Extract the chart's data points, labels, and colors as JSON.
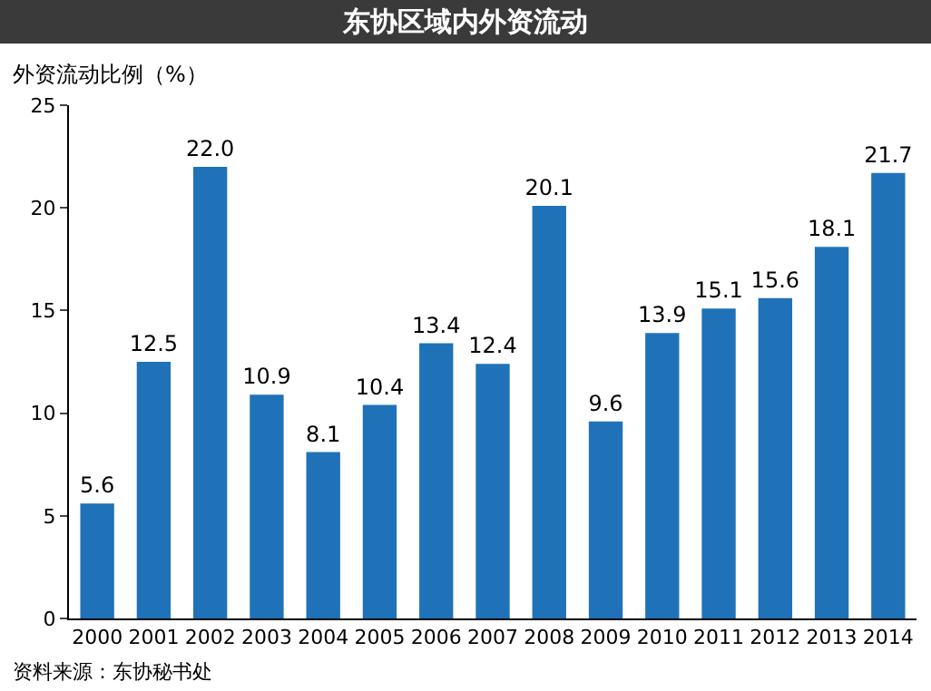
{
  "chart_data": {
    "type": "bar",
    "title": "东协区域内外资流动",
    "ylabel": "外资流动比例（%）",
    "categories": [
      "2000",
      "2001",
      "2002",
      "2003",
      "2004",
      "2005",
      "2006",
      "2007",
      "2008",
      "2009",
      "2010",
      "2011",
      "2012",
      "2013",
      "2014"
    ],
    "values": [
      5.6,
      12.5,
      22.0,
      10.9,
      8.1,
      10.4,
      13.4,
      12.4,
      20.1,
      9.6,
      13.9,
      15.1,
      15.6,
      18.1,
      21.7
    ],
    "value_labels": [
      "5.6",
      "12.5",
      "22.0",
      "10.9",
      "8.1",
      "10.4",
      "13.4",
      "12.4",
      "20.1",
      "9.6",
      "13.9",
      "15.1",
      "15.6",
      "18.1",
      "21.7"
    ],
    "color": "#1f72b8",
    "ylim": [
      0,
      25
    ],
    "yticks": [
      0,
      5,
      10,
      15,
      20,
      25
    ],
    "grid": false,
    "legend": false,
    "annotations": [
      "资料来源：东协秘书处"
    ]
  }
}
